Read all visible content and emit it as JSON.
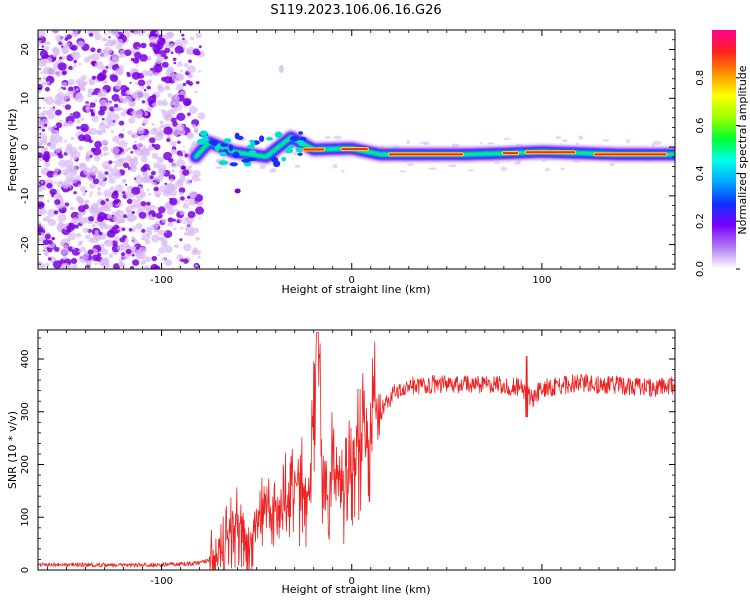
{
  "title": "S119.2023.106.06.16.G26",
  "colors": {
    "snr_line": "#ee2222",
    "speckle_dark": "#7a00e0",
    "speckle_light": "#d8b8f4",
    "colormap": [
      "#ffffff",
      "#b07cf0",
      "#7a00ff",
      "#1030ff",
      "#00a8ff",
      "#00ffe8",
      "#00ff30",
      "#a0ff00",
      "#ffff00",
      "#ff9000",
      "#ff2020",
      "#ff0090"
    ]
  },
  "chart_data": [
    {
      "type": "heatmap",
      "xlabel": "Height of straight line (km)",
      "ylabel": "Frequency (Hz)",
      "xlim": [
        -165,
        170
      ],
      "ylim": [
        -25,
        24
      ],
      "xticks": [
        -100,
        0,
        100
      ],
      "yticks": [
        -20,
        -10,
        0,
        10,
        20
      ],
      "colorbar": {
        "label": "Normalized spectral amplitude",
        "range": [
          0,
          1
        ],
        "ticks": [
          0.0,
          0.2,
          0.4,
          0.6,
          0.8
        ]
      },
      "signal": {
        "noise_until_km": -82,
        "track_points": [
          [
            -82,
            -2
          ],
          [
            -75,
            1
          ],
          [
            -62,
            -1
          ],
          [
            -45,
            -2
          ],
          [
            -32,
            2
          ],
          [
            -20,
            -0.5
          ],
          [
            0,
            -0.3
          ],
          [
            15,
            -1.5
          ],
          [
            60,
            -1.5
          ],
          [
            80,
            -1.3
          ],
          [
            100,
            -1
          ],
          [
            140,
            -1.5
          ],
          [
            170,
            -1.5
          ]
        ],
        "peak_segments": [
          [
            -25,
            -15
          ],
          [
            -5,
            8
          ],
          [
            20,
            58
          ],
          [
            80,
            87
          ],
          [
            92,
            117
          ],
          [
            128,
            165
          ]
        ]
      }
    },
    {
      "type": "line",
      "xlabel": "Height of straight line (km)",
      "ylabel": "SNR (10 * v/v)",
      "xlim": [
        -165,
        170
      ],
      "ylim": [
        0,
        455
      ],
      "xticks": [
        -100,
        0,
        100
      ],
      "yticks": [
        0,
        100,
        200,
        300,
        400
      ],
      "series": [
        {
          "name": "SNR",
          "x": [
            -165,
            -140,
            -120,
            -100,
            -85,
            -78,
            -70,
            -62,
            -55,
            -45,
            -38,
            -30,
            -22,
            -18,
            -15,
            -10,
            -5,
            0,
            5,
            10,
            15,
            20,
            25,
            30,
            40,
            60,
            80,
            90,
            95,
            100,
            120,
            140,
            160,
            170
          ],
          "y": [
            10,
            10,
            9,
            10,
            12,
            15,
            25,
            90,
            60,
            110,
            95,
            170,
            120,
            440,
            130,
            190,
            150,
            205,
            240,
            270,
            300,
            325,
            345,
            350,
            352,
            352,
            350,
            345,
            325,
            345,
            355,
            350,
            345,
            350
          ]
        }
      ],
      "annotations": [
        [
          -18,
          445,
          "spike"
        ],
        [
          -37,
          285,
          "spike"
        ],
        [
          -40,
          335,
          "spike"
        ],
        [
          92,
          405,
          "spike"
        ],
        [
          93,
          290,
          "dip"
        ]
      ]
    }
  ]
}
